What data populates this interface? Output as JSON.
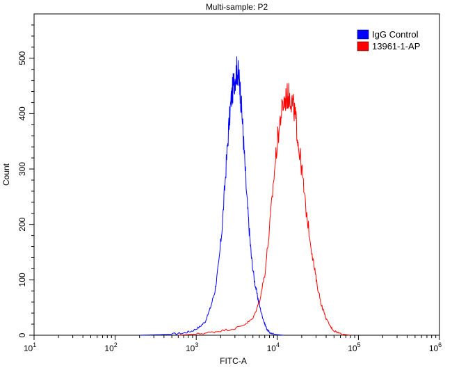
{
  "chart_data": {
    "type": "line",
    "title": "Multi-sample: P2",
    "xlabel": "FITC-A",
    "ylabel": "Count",
    "x_scale": "log10",
    "xlim": [
      10,
      1000000
    ],
    "ylim": [
      0,
      580
    ],
    "grid": false,
    "legend_position": "top-right",
    "x_ticks": [
      {
        "value": 10,
        "base": "10",
        "exp": "1"
      },
      {
        "value": 100,
        "base": "10",
        "exp": "2"
      },
      {
        "value": 1000,
        "base": "10",
        "exp": "3"
      },
      {
        "value": 10000,
        "base": "10",
        "exp": "4"
      },
      {
        "value": 100000,
        "base": "10",
        "exp": "5"
      },
      {
        "value": 1000000,
        "base": "10",
        "exp": "6"
      }
    ],
    "y_ticks": [
      0,
      100,
      200,
      300,
      400,
      500
    ],
    "series": [
      {
        "name": "IgG Control",
        "color": "#0000ff",
        "x": [
          200,
          350,
          500,
          700,
          900,
          1100,
          1300,
          1500,
          1700,
          1900,
          2100,
          2300,
          2500,
          2700,
          2900,
          3050,
          3200,
          3350,
          3500,
          3700,
          3900,
          4200,
          4500,
          4800,
          5200,
          5600,
          6000,
          6500,
          7000,
          7500,
          8000,
          9000,
          10000,
          12000
        ],
        "y": [
          0,
          1,
          2,
          4,
          8,
          15,
          25,
          50,
          80,
          130,
          200,
          290,
          370,
          425,
          455,
          470,
          480,
          465,
          440,
          390,
          330,
          250,
          190,
          140,
          100,
          75,
          55,
          35,
          20,
          10,
          5,
          2,
          1,
          0
        ]
      },
      {
        "name": "13961-1-AP",
        "color": "#ff0000",
        "x": [
          600,
          1000,
          1500,
          2000,
          3000,
          4000,
          5000,
          6000,
          7000,
          8000,
          9000,
          10000,
          11000,
          12000,
          13000,
          14000,
          15000,
          16000,
          17000,
          18000,
          20000,
          22000,
          25000,
          28000,
          31000,
          35000,
          40000,
          45000,
          50000,
          60000,
          70000,
          80000
        ],
        "y": [
          0,
          2,
          5,
          8,
          12,
          20,
          30,
          60,
          110,
          190,
          280,
          350,
          395,
          420,
          430,
          432,
          425,
          410,
          385,
          350,
          300,
          240,
          180,
          130,
          90,
          55,
          30,
          16,
          8,
          3,
          1,
          0
        ]
      }
    ]
  }
}
